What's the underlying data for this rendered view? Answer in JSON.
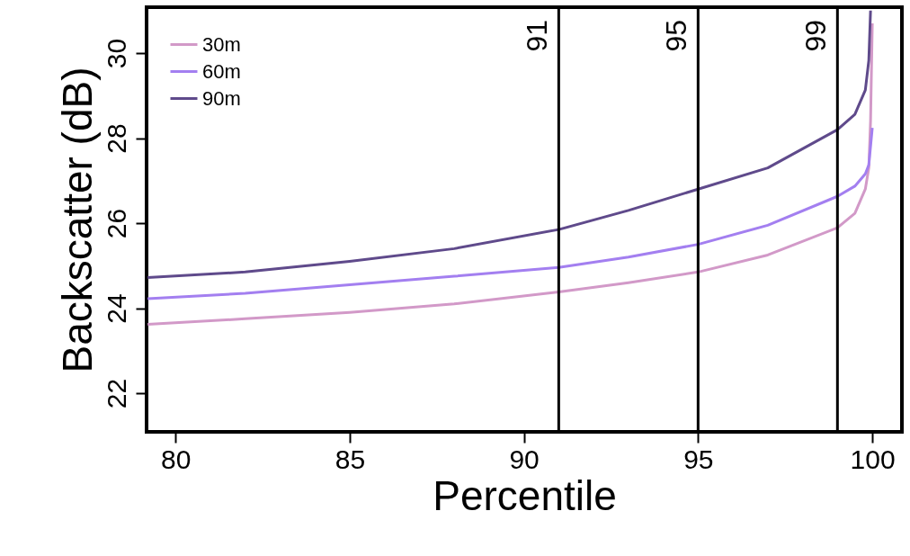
{
  "chart_data": {
    "type": "line",
    "xlabel": "Percentile",
    "ylabel": "Backscatter (dB)",
    "xlim": [
      79.17,
      100.85
    ],
    "ylim": [
      21.09,
      31.08
    ],
    "xticks": [
      80,
      85,
      90,
      95,
      100
    ],
    "yticks": [
      22,
      24,
      26,
      28,
      30
    ],
    "grid": false,
    "legend": "top left",
    "marker": "none",
    "line_style": "solid",
    "series": [
      {
        "name": "30m",
        "color": "#d299c8",
        "x": [
          79.2,
          82,
          85,
          88,
          91,
          93,
          95,
          97,
          99,
          99.5,
          99.8,
          99.9,
          99.95,
          100
        ],
        "values": [
          23.62,
          23.75,
          23.9,
          24.1,
          24.38,
          24.6,
          24.85,
          25.25,
          25.89,
          26.23,
          26.8,
          27.3,
          28.4,
          30.7
        ]
      },
      {
        "name": "60m",
        "color": "#a37ff0",
        "x": [
          79.2,
          82,
          85,
          88,
          91,
          93,
          95,
          97,
          99,
          99.5,
          99.8,
          99.9,
          100
        ],
        "values": [
          24.22,
          24.35,
          24.55,
          24.75,
          24.96,
          25.2,
          25.5,
          25.95,
          26.63,
          26.87,
          27.16,
          27.37,
          28.24
        ]
      },
      {
        "name": "90m",
        "color": "#5f4a8b",
        "x": [
          79.2,
          82,
          85,
          88,
          91,
          93,
          95,
          97,
          99,
          99.5,
          99.8,
          99.9,
          99.95
        ],
        "values": [
          24.72,
          24.85,
          25.1,
          25.4,
          25.85,
          26.3,
          26.8,
          27.3,
          28.2,
          28.56,
          29.13,
          29.83,
          31.0
        ]
      }
    ],
    "ref_lines": [
      {
        "axis": "x",
        "value": 91,
        "label": "91",
        "color": "#000000"
      },
      {
        "axis": "x",
        "value": 95,
        "label": "95",
        "color": "#000000"
      },
      {
        "axis": "x",
        "value": 99,
        "label": "99",
        "color": "#000000"
      }
    ]
  }
}
